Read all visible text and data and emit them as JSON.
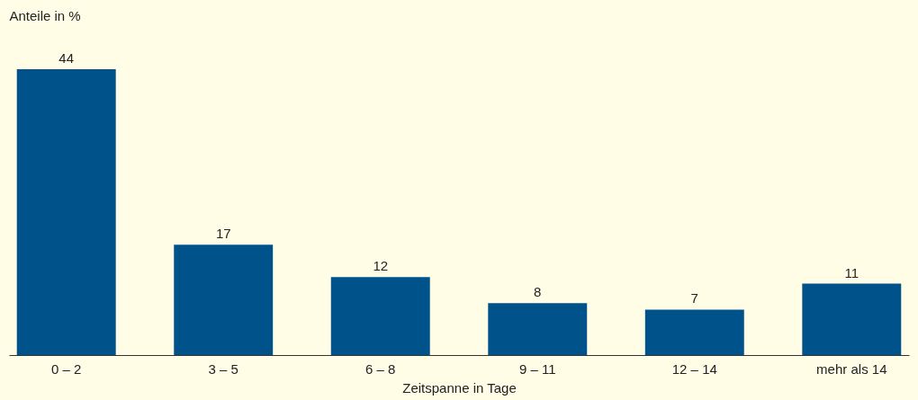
{
  "chart_data": {
    "type": "bar",
    "ylabel": "Anteile in %",
    "xlabel": "Zeitspanne in Tage",
    "categories": [
      "0 – 2",
      "3 – 5",
      "6 – 8",
      "9 – 11",
      "12 – 14",
      "mehr als 14"
    ],
    "values": [
      44,
      17,
      12,
      8,
      7,
      11
    ],
    "color": "#00538a",
    "data_labels": true,
    "grid": false
  }
}
